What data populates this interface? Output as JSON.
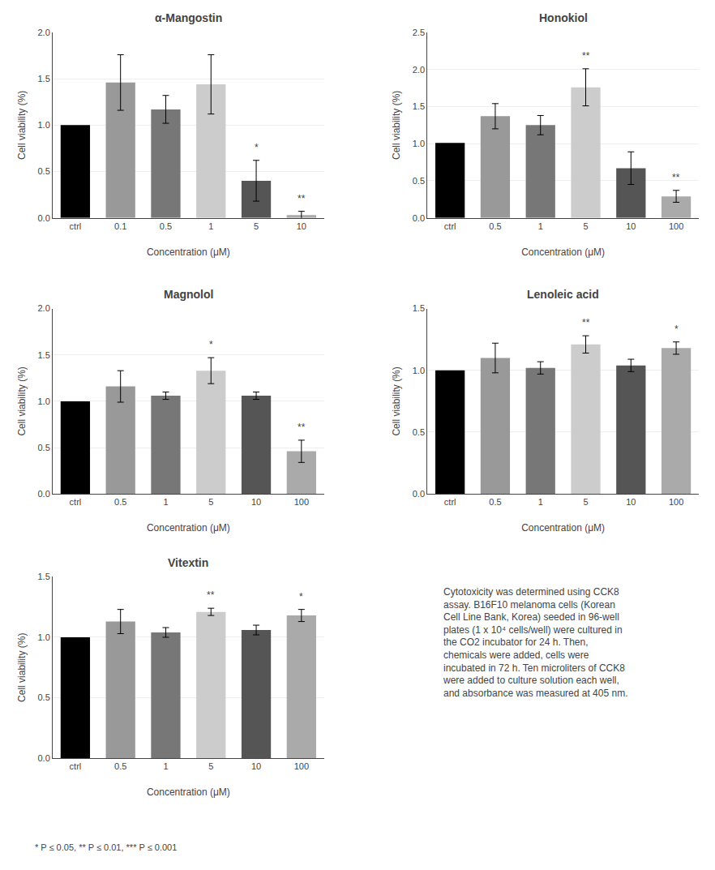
{
  "chart_data": [
    {
      "type": "bar",
      "title": "α-Mangostin",
      "categories": [
        "ctrl",
        "0.1",
        "0.5",
        "1",
        "5",
        "10"
      ],
      "values": [
        1.0,
        1.46,
        1.17,
        1.44,
        0.4,
        0.03
      ],
      "errors": [
        0.0,
        0.3,
        0.15,
        0.32,
        0.22,
        0.04
      ],
      "colors": [
        "#000000",
        "#999999",
        "#777777",
        "#cccccc",
        "#555555",
        "#aaaaaa"
      ],
      "ylim": [
        0,
        2.0
      ],
      "yticks": [
        {
          "value": 0.0,
          "label": "0.0"
        },
        0.5,
        {
          "value": 1.0,
          "label": "1.0"
        },
        1.5,
        {
          "value": 2.0,
          "label": "2.0"
        }
      ],
      "annotations": [
        {
          "category": "5",
          "text": "*"
        },
        {
          "category": "10",
          "text": "**"
        }
      ],
      "xlabel": "Concentration (μM)",
      "ylabel": "Cell viability (%)"
    },
    {
      "type": "bar",
      "title": "Honokiol",
      "categories": [
        "ctrl",
        "0.5",
        "1",
        "5",
        "10",
        "100"
      ],
      "values": [
        1.01,
        1.37,
        1.25,
        1.76,
        0.67,
        0.29
      ],
      "errors": [
        0.0,
        0.17,
        0.13,
        0.25,
        0.22,
        0.08
      ],
      "colors": [
        "#000000",
        "#999999",
        "#777777",
        "#cccccc",
        "#555555",
        "#aaaaaa"
      ],
      "ylim": [
        0,
        2.5
      ],
      "yticks": [
        {
          "value": 0.0,
          "label": "0.0"
        },
        0.5,
        {
          "value": 1.0,
          "label": "1.0"
        },
        1.5,
        {
          "value": 2.0,
          "label": "2.0"
        },
        2.5
      ],
      "annotations": [
        {
          "category": "5",
          "text": "**"
        },
        {
          "category": "100",
          "text": "**"
        }
      ],
      "xlabel": "Concentration (μM)",
      "ylabel": "Cell viability (%)"
    },
    {
      "type": "bar",
      "title": "Magnolol",
      "categories": [
        "ctrl",
        "0.5",
        "1",
        "5",
        "10",
        "100"
      ],
      "values": [
        1.0,
        1.16,
        1.06,
        1.33,
        1.06,
        0.46
      ],
      "errors": [
        0.0,
        0.17,
        0.04,
        0.14,
        0.04,
        0.12
      ],
      "colors": [
        "#000000",
        "#999999",
        "#777777",
        "#cccccc",
        "#555555",
        "#aaaaaa"
      ],
      "ylim": [
        0,
        2.0
      ],
      "yticks": [
        {
          "value": 0.0,
          "label": "0.0"
        },
        0.5,
        {
          "value": 1.0,
          "label": "1.0"
        },
        1.5,
        {
          "value": 2.0,
          "label": "2.0"
        }
      ],
      "annotations": [
        {
          "category": "5",
          "text": "*"
        },
        {
          "category": "100",
          "text": "**"
        }
      ],
      "xlabel": "Concentration (μM)",
      "ylabel": "Cell viability (%)"
    },
    {
      "type": "bar",
      "title": "Lenoleic acid",
      "categories": [
        "ctrl",
        "0.5",
        "1",
        "5",
        "10",
        "100"
      ],
      "values": [
        1.0,
        1.1,
        1.02,
        1.21,
        1.04,
        1.18
      ],
      "errors": [
        0.0,
        0.12,
        0.05,
        0.07,
        0.05,
        0.05
      ],
      "colors": [
        "#000000",
        "#999999",
        "#777777",
        "#cccccc",
        "#555555",
        "#aaaaaa"
      ],
      "ylim": [
        0,
        1.5
      ],
      "yticks": [
        {
          "value": 0.0,
          "label": "0.0"
        },
        0.5,
        {
          "value": 1.0,
          "label": "1.0"
        },
        1.5
      ],
      "annotations": [
        {
          "category": "5",
          "text": "**"
        },
        {
          "category": "100",
          "text": "*"
        }
      ],
      "xlabel": "Concentration (μM)",
      "ylabel": "Cell viability (%)"
    },
    {
      "type": "bar",
      "title": "Vitextin",
      "categories": [
        "ctrl",
        "0.5",
        "1",
        "5",
        "10",
        "100"
      ],
      "values": [
        1.0,
        1.13,
        1.04,
        1.21,
        1.06,
        1.18
      ],
      "errors": [
        0.0,
        0.1,
        0.04,
        0.03,
        0.04,
        0.05
      ],
      "colors": [
        "#000000",
        "#999999",
        "#777777",
        "#cccccc",
        "#555555",
        "#aaaaaa"
      ],
      "ylim": [
        0,
        1.5
      ],
      "yticks": [
        {
          "value": 0.0,
          "label": "0.0"
        },
        0.5,
        {
          "value": 1.0,
          "label": "1.0"
        },
        1.5
      ],
      "annotations": [
        {
          "category": "5",
          "text": "**"
        },
        {
          "category": "100",
          "text": "*"
        }
      ],
      "xlabel": "Concentration (μM)",
      "ylabel": "Cell viability (%)"
    }
  ],
  "annotations": [
    "Cytotoxicity was determined using CCK8\nassay. B16F10 melanoma cells (Korean\nCell Line Bank, Korea) seeded in 96-well\nplates (1 x 10⁴ cells/well) were cultured in\nthe CO2 incubator for 24 h. Then,\nchemicals were added, cells were\nincubated in 72 h. Ten microliters of CCK8\nwere added to culture solution each well,\nand absorbance was measured at 405 nm.",
    "* P ≤ 0.05, ** P ≤ 0.01, *** P ≤ 0.001"
  ]
}
